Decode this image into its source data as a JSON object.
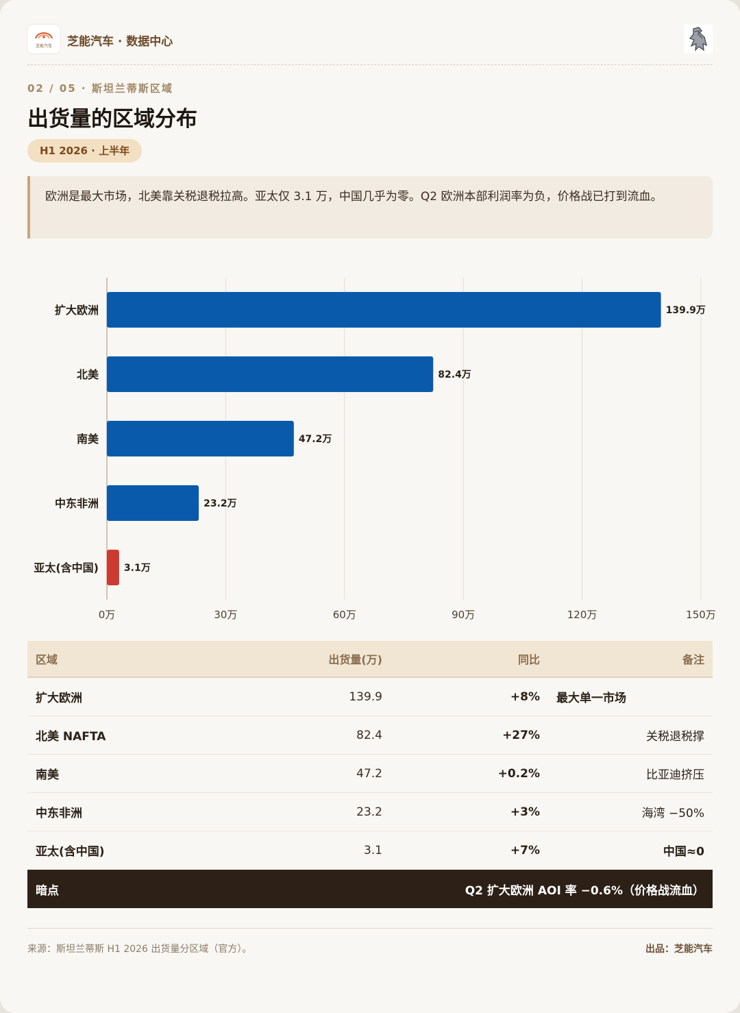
{
  "header": {
    "logo_text": "芝能汽车",
    "brand": "芝能汽车 · 数据中心"
  },
  "breadcrumb": "02 / 05 · 斯坦兰蒂斯区域",
  "title": "出货量的区域分布",
  "period_badge": "H1 2026 · 上半年",
  "summary": "欧洲是最大市场，北美靠关税退税拉高。亚太仅 3.1 万，中国几乎为零。Q2 欧洲本部利润率为负，价格战已打到流血。",
  "chart_data": {
    "type": "bar",
    "orientation": "horizontal",
    "categories": [
      "扩大欧洲",
      "北美",
      "南美",
      "中东非洲",
      "亚太(含中国)"
    ],
    "values": [
      139.9,
      82.4,
      47.2,
      23.2,
      3.1
    ],
    "value_labels": [
      "139.9万",
      "82.4万",
      "47.2万",
      "23.2万",
      "3.1万"
    ],
    "x_ticks": [
      "0万",
      "30万",
      "60万",
      "90万",
      "120万",
      "150万"
    ],
    "xlim": [
      0,
      150
    ],
    "grid": "vertical",
    "colors": [
      "#0a5aac",
      "#0a5aac",
      "#0a5aac",
      "#0a5aac",
      "#cc3b32"
    ]
  },
  "table": {
    "headers": [
      "区域",
      "出货量(万)",
      "同比",
      "备注"
    ],
    "rows": [
      {
        "region": "扩大欧洲",
        "volume": "139.9",
        "yoy": "+8%",
        "note": "最大单一市场"
      },
      {
        "region": "北美 NAFTA",
        "volume": "82.4",
        "yoy": "+27%",
        "note": "关税退税撑"
      },
      {
        "region": "南美",
        "volume": "47.2",
        "yoy": "+0.2%",
        "note": "比亚迪挤压"
      },
      {
        "region": "中东非洲",
        "volume": "23.2",
        "yoy": "+3%",
        "note": "海湾 −50%"
      },
      {
        "region": "亚太(含中国)",
        "volume": "3.1",
        "yoy": "+7%",
        "note": "中国≈0"
      }
    ],
    "highlight": {
      "label": "暗点",
      "text": "Q2 扩大欧洲 AOI 率 −0.6%（价格战流血）"
    }
  },
  "footer": {
    "source": "来源：斯坦兰蒂斯 H1 2026 出货量分区域（官方）。",
    "credit": "出品：芝能汽车"
  },
  "icons": {
    "logo": "car-logo-icon",
    "lion": "lion-emblem-icon"
  }
}
